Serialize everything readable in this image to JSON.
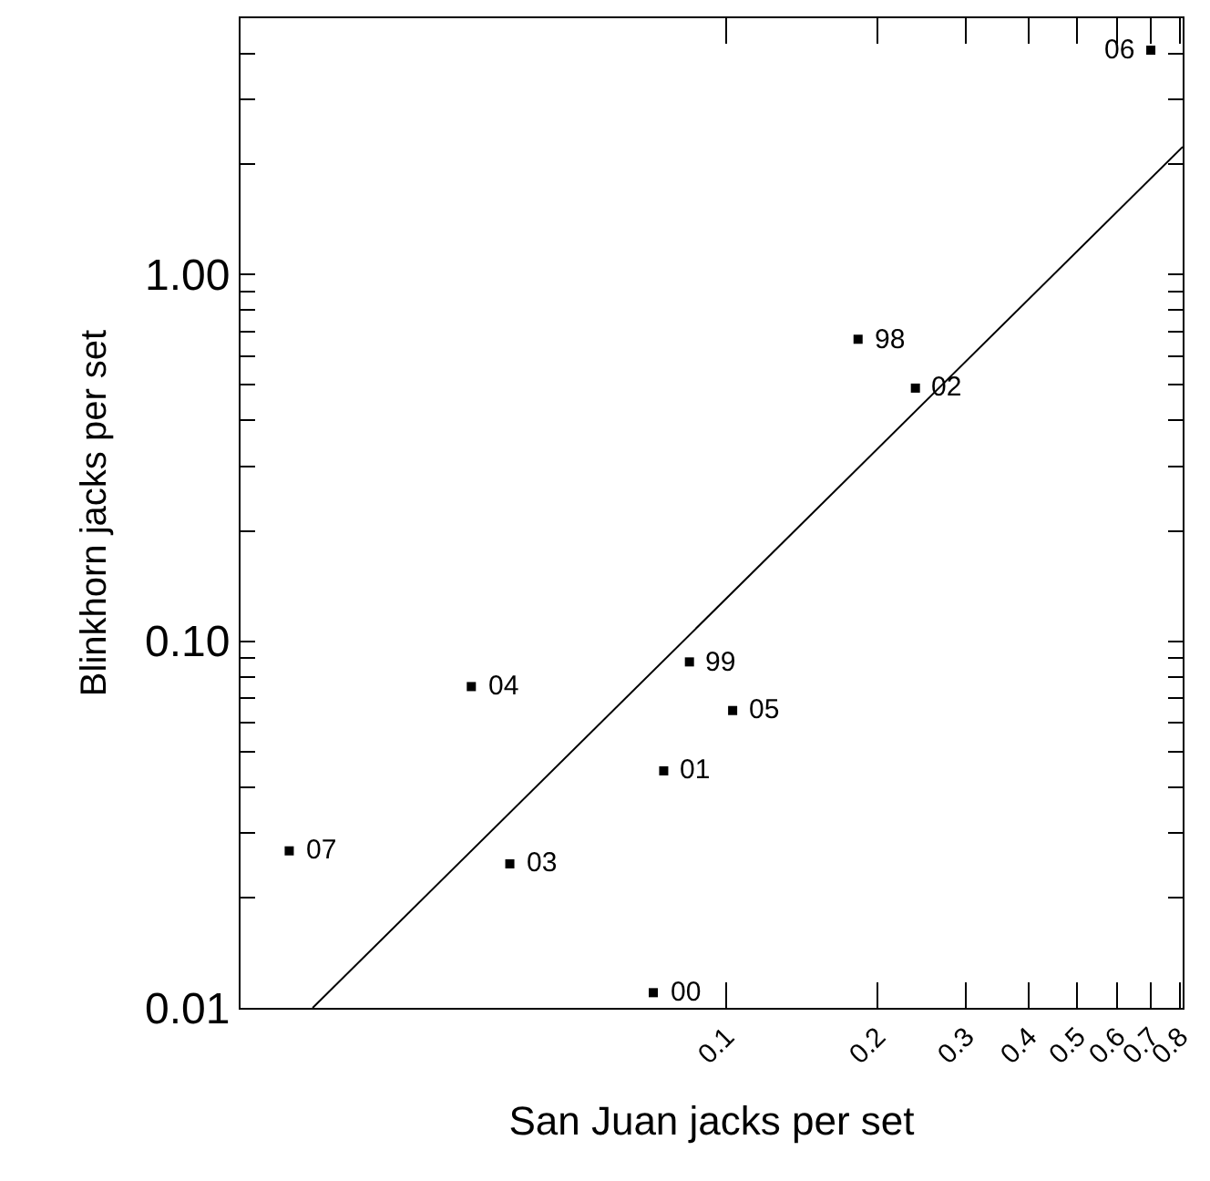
{
  "chart_data": {
    "type": "scatter",
    "xlabel": "San Juan jacks per set",
    "ylabel": "Blinkhorn jacks per set",
    "log": "xy",
    "xlim": [
      0.0108,
      0.81
    ],
    "ylim": [
      0.01,
      5
    ],
    "xticks": [
      0.1,
      0.2,
      0.3,
      0.4,
      0.5,
      0.6,
      0.7,
      0.8
    ],
    "yticks": [
      {
        "value": 0.01,
        "label": "0.01"
      },
      {
        "value": 0.02,
        "label": null
      },
      {
        "value": 0.03,
        "label": null
      },
      {
        "value": 0.04,
        "label": null
      },
      {
        "value": 0.05,
        "label": null
      },
      {
        "value": 0.06,
        "label": null
      },
      {
        "value": 0.07,
        "label": null
      },
      {
        "value": 0.08,
        "label": null
      },
      {
        "value": 0.09,
        "label": null
      },
      {
        "value": 0.1,
        "label": "0.10"
      },
      {
        "value": 0.2,
        "label": null
      },
      {
        "value": 0.3,
        "label": null
      },
      {
        "value": 0.4,
        "label": null
      },
      {
        "value": 0.5,
        "label": null
      },
      {
        "value": 0.6,
        "label": null
      },
      {
        "value": 0.7,
        "label": null
      },
      {
        "value": 0.8,
        "label": null
      },
      {
        "value": 0.9,
        "label": null
      },
      {
        "value": 1,
        "label": "1.00"
      },
      {
        "value": 2,
        "label": null
      },
      {
        "value": 3,
        "label": null
      },
      {
        "value": 4,
        "label": null
      },
      {
        "value": 5,
        "label": null
      }
    ],
    "annotations": [
      {
        "text": "06",
        "x": 0.7,
        "y": 4.09
      },
      {
        "text": "98",
        "x": 0.183,
        "y": 0.666
      },
      {
        "text": "02",
        "x": 0.238,
        "y": 0.49
      },
      {
        "text": "99",
        "x": 0.0845,
        "y": 0.0878
      },
      {
        "text": "04",
        "x": 0.0311,
        "y": 0.0752
      },
      {
        "text": "05",
        "x": 0.103,
        "y": 0.0647
      },
      {
        "text": "01",
        "x": 0.0751,
        "y": 0.0443
      },
      {
        "text": "07",
        "x": 0.0135,
        "y": 0.0268
      },
      {
        "text": "03",
        "x": 0.0371,
        "y": 0.0247
      },
      {
        "text": "00",
        "x": 0.0716,
        "y": 0.011
      }
    ],
    "series": [
      {
        "color": "#000000",
        "marker": "square",
        "x": [
          0.7,
          0.183,
          0.238,
          0.0845,
          0.0311,
          0.103,
          0.0751,
          0.0135,
          0.0371,
          0.0716
        ],
        "values": [
          4.09,
          0.666,
          0.49,
          0.0878,
          0.0752,
          0.0647,
          0.0443,
          0.0268,
          0.0247,
          0.011
        ]
      },
      {
        "type": "line",
        "color": "#000000",
        "x": [
          0.01503,
          0.81
        ],
        "values": [
          0.01,
          2.23
        ]
      }
    ]
  }
}
